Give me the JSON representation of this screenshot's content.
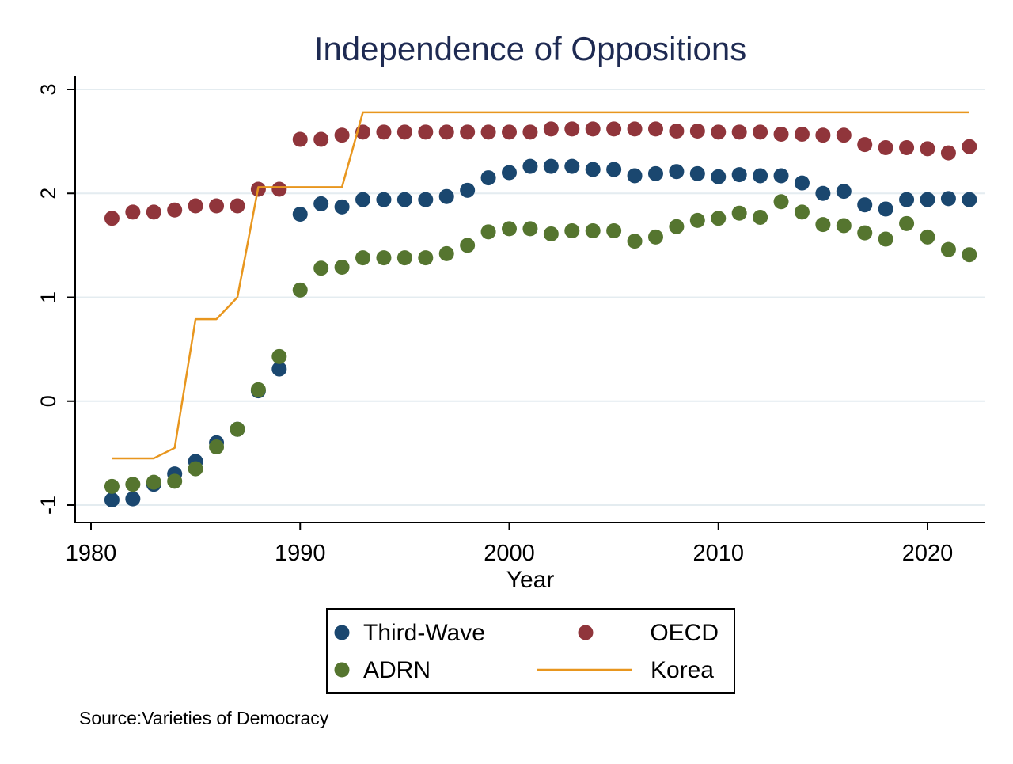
{
  "chart_data": {
    "type": "scatter",
    "title": "Independence of Oppositions",
    "xlabel": "Year",
    "ylabel": "",
    "xlim": [
      1980,
      2022
    ],
    "ylim": [
      -1,
      3
    ],
    "xticks": [
      1980,
      1990,
      2000,
      2010,
      2020
    ],
    "yticks": [
      -1,
      0,
      1,
      2,
      3
    ],
    "grid": true,
    "legend_position": "bottom",
    "source": "Source:Varieties of Democracy",
    "x": [
      1981,
      1982,
      1983,
      1984,
      1985,
      1986,
      1987,
      1988,
      1989,
      1990,
      1991,
      1992,
      1993,
      1994,
      1995,
      1996,
      1997,
      1998,
      1999,
      2000,
      2001,
      2002,
      2003,
      2004,
      2005,
      2006,
      2007,
      2008,
      2009,
      2010,
      2011,
      2012,
      2013,
      2014,
      2015,
      2016,
      2017,
      2018,
      2019,
      2020,
      2021,
      2022
    ],
    "series": [
      {
        "name": "Third-Wave",
        "marker": "dot",
        "color": "#1a476f",
        "values": [
          -0.95,
          -0.94,
          -0.8,
          -0.7,
          -0.58,
          -0.4,
          -0.27,
          0.1,
          0.31,
          1.8,
          1.9,
          1.87,
          1.94,
          1.94,
          1.94,
          1.94,
          1.97,
          2.03,
          2.15,
          2.2,
          2.26,
          2.26,
          2.26,
          2.23,
          2.23,
          2.17,
          2.19,
          2.21,
          2.19,
          2.16,
          2.18,
          2.17,
          2.17,
          2.1,
          2.0,
          2.02,
          1.89,
          1.85,
          1.94,
          1.94,
          1.95,
          1.94
        ]
      },
      {
        "name": "OECD",
        "marker": "dot",
        "color": "#90353b",
        "values": [
          1.76,
          1.82,
          1.82,
          1.84,
          1.88,
          1.88,
          1.88,
          2.04,
          2.04,
          2.52,
          2.52,
          2.56,
          2.59,
          2.59,
          2.59,
          2.59,
          2.59,
          2.59,
          2.59,
          2.59,
          2.59,
          2.62,
          2.62,
          2.62,
          2.62,
          2.62,
          2.62,
          2.6,
          2.6,
          2.59,
          2.59,
          2.59,
          2.57,
          2.57,
          2.56,
          2.56,
          2.47,
          2.44,
          2.44,
          2.43,
          2.39,
          2.45
        ]
      },
      {
        "name": "ADRN",
        "marker": "dot",
        "color": "#55752f",
        "values": [
          -0.82,
          -0.8,
          -0.78,
          -0.77,
          -0.65,
          -0.44,
          -0.27,
          0.11,
          0.43,
          1.07,
          1.28,
          1.29,
          1.38,
          1.38,
          1.38,
          1.38,
          1.42,
          1.5,
          1.63,
          1.66,
          1.66,
          1.61,
          1.64,
          1.64,
          1.64,
          1.54,
          1.58,
          1.68,
          1.74,
          1.76,
          1.81,
          1.77,
          1.92,
          1.82,
          1.7,
          1.69,
          1.62,
          1.56,
          1.71,
          1.58,
          1.46,
          1.41
        ]
      },
      {
        "name": "Korea",
        "marker": "line",
        "color": "#e8961e",
        "values": [
          -0.55,
          -0.55,
          -0.55,
          -0.45,
          0.79,
          0.79,
          1.0,
          2.06,
          2.06,
          2.06,
          2.06,
          2.06,
          2.78,
          2.78,
          2.78,
          2.78,
          2.78,
          2.78,
          2.78,
          2.78,
          2.78,
          2.78,
          2.78,
          2.78,
          2.78,
          2.78,
          2.78,
          2.78,
          2.78,
          2.78,
          2.78,
          2.78,
          2.78,
          2.78,
          2.78,
          2.78,
          2.78,
          2.78,
          2.78,
          2.78,
          2.78,
          2.78
        ]
      }
    ]
  }
}
